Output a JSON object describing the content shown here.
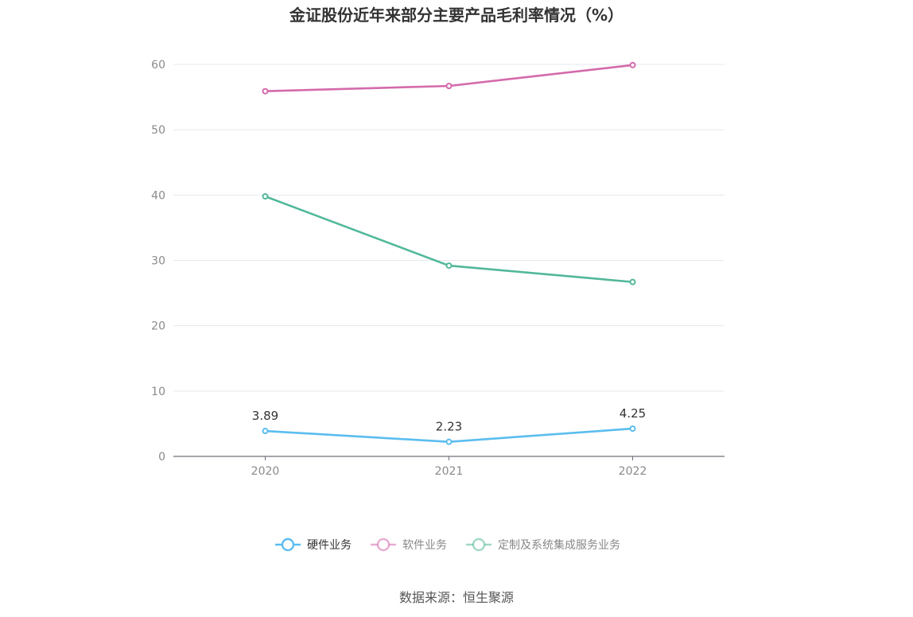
{
  "chart_data": {
    "type": "line",
    "title": "金证股份近年来部分主要产品毛利率情况（%）",
    "categories": [
      "2020",
      "2021",
      "2022"
    ],
    "ylim": [
      0,
      60
    ],
    "yticks": [
      "0",
      "10",
      "20",
      "30",
      "40",
      "50",
      "60"
    ],
    "series": [
      {
        "name": "硬件业务",
        "values": [
          3.89,
          2.23,
          4.25
        ],
        "color": "#5bbdef",
        "labels": [
          "3.89",
          "2.23",
          "4.25"
        ]
      },
      {
        "name": "软件业务",
        "values": [
          55.9,
          56.7,
          59.9
        ],
        "color": "#d46aab"
      },
      {
        "name": "定制及系统集成服务业务",
        "values": [
          39.8,
          29.2,
          26.7
        ],
        "color": "#52b89a"
      }
    ],
    "legend": {
      "position": "bottom",
      "items": [
        "硬件业务",
        "软件业务",
        "定制及系统集成服务业务"
      ],
      "active_color": "#333333",
      "inactive_color": "#888888"
    },
    "source": "数据来源：恒生聚源"
  }
}
